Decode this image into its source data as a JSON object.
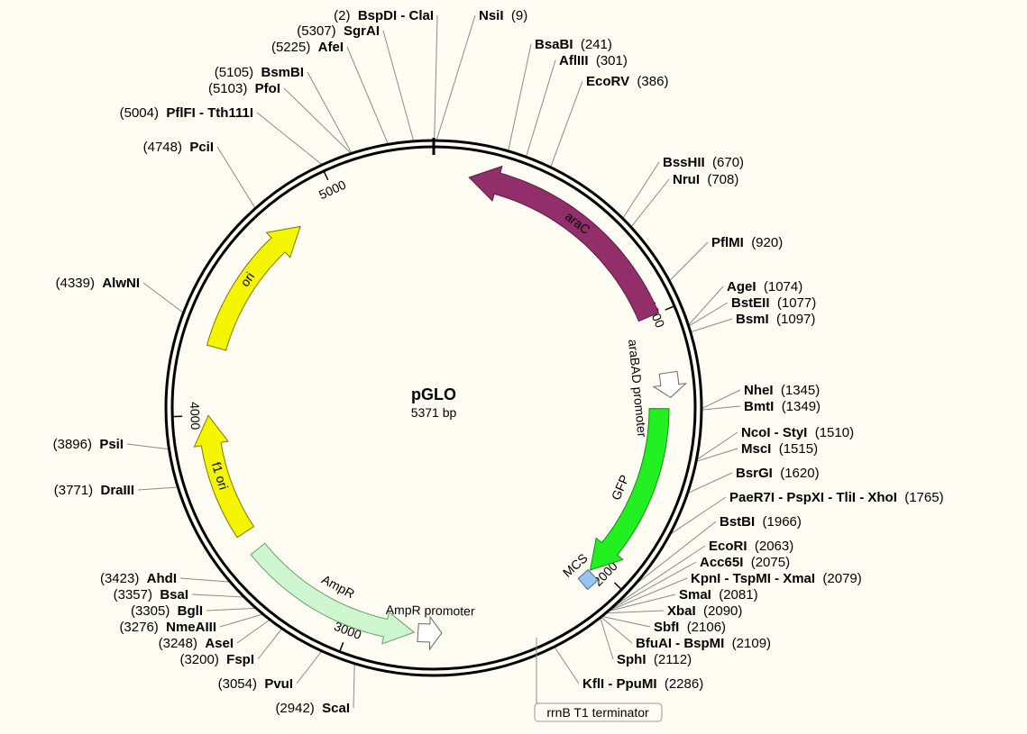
{
  "plasmid": {
    "name": "pGLO",
    "size_label": "5371 bp",
    "length_bp": 5371
  },
  "ticks": [
    "1000",
    "2000",
    "3000",
    "4000",
    "5000"
  ],
  "features": [
    {
      "name": "araC",
      "start": 1000,
      "end": 130,
      "direction": "reverse",
      "color": "#922f6a",
      "stroke": "#5a1e42",
      "label_inside": true,
      "text_color": "#ffffff"
    },
    {
      "name": "araBAD promoter",
      "start": 1215,
      "end": 1305,
      "direction": "forward",
      "color": "#ffffff",
      "stroke": "#666666",
      "label_inside": false,
      "text_color": "#000000"
    },
    {
      "name": "GFP",
      "start": 1345,
      "end": 2030,
      "direction": "forward",
      "color": "#23f020",
      "stroke": "#1a8a18",
      "label_inside": false,
      "text_color": "#000000"
    },
    {
      "name": "MCS",
      "start": 2035,
      "end": 2085,
      "direction": "none",
      "color": "#99c4f0",
      "stroke": "#4a6f9a",
      "label_inside": false,
      "text_color": "#000000"
    },
    {
      "name": "AmpR promoter",
      "start": 2655,
      "end": 2745,
      "direction": "reverse",
      "color": "#ffffff",
      "stroke": "#666666",
      "label_inside": false,
      "text_color": "#000000"
    },
    {
      "name": "AmpR",
      "start": 2760,
      "end": 3450,
      "direction": "reverse",
      "color": "#cff7cf",
      "stroke": "#6aa06a",
      "label_inside": false,
      "text_color": "#000000"
    },
    {
      "name": "f1 ori",
      "start": 3530,
      "end": 4000,
      "direction": "forward",
      "color": "#f5f500",
      "stroke": "#7a7a00",
      "label_inside": true,
      "text_color": "#000000"
    },
    {
      "name": "ori",
      "start": 4260,
      "end": 4830,
      "direction": "forward",
      "color": "#f5f500",
      "stroke": "#7a7a00",
      "label_inside": true,
      "text_color": "#000000"
    }
  ],
  "rrnB_terminator": {
    "name": "rrnB T1 terminator"
  },
  "sites": [
    {
      "name": "NsiI",
      "pos": "(9)",
      "bp": 9
    },
    {
      "name": "BsaBI",
      "pos": "(241)",
      "bp": 241
    },
    {
      "name": "AflIII",
      "pos": "(301)",
      "bp": 301
    },
    {
      "name": "EcoRV",
      "pos": "(386)",
      "bp": 386
    },
    {
      "name": "BssHII",
      "pos": "(670)",
      "bp": 670
    },
    {
      "name": "NruI",
      "pos": "(708)",
      "bp": 708
    },
    {
      "name": "PflMI",
      "pos": "(920)",
      "bp": 920
    },
    {
      "name": "AgeI",
      "pos": "(1074)",
      "bp": 1074
    },
    {
      "name": "BstEII",
      "pos": "(1077)",
      "bp": 1077
    },
    {
      "name": "BsmI",
      "pos": "(1097)",
      "bp": 1097
    },
    {
      "name": "NheI",
      "pos": "(1345)",
      "bp": 1345
    },
    {
      "name": "BmtI",
      "pos": "(1349)",
      "bp": 1349
    },
    {
      "name": "NcoI - StyI",
      "pos": "(1510)",
      "bp": 1510
    },
    {
      "name": "MscI",
      "pos": "(1515)",
      "bp": 1515
    },
    {
      "name": "BsrGI",
      "pos": "(1620)",
      "bp": 1620
    },
    {
      "name": "PaeR7I - PspXI - TliI - XhoI",
      "pos": "(1765)",
      "bp": 1765
    },
    {
      "name": "BstBI",
      "pos": "(1966)",
      "bp": 1966
    },
    {
      "name": "EcoRI",
      "pos": "(2063)",
      "bp": 2063
    },
    {
      "name": "Acc65I",
      "pos": "(2075)",
      "bp": 2075
    },
    {
      "name": "KpnI - TspMI - XmaI",
      "pos": "(2079)",
      "bp": 2079
    },
    {
      "name": "SmaI",
      "pos": "(2081)",
      "bp": 2081
    },
    {
      "name": "XbaI",
      "pos": "(2090)",
      "bp": 2090
    },
    {
      "name": "SbfI",
      "pos": "(2106)",
      "bp": 2106
    },
    {
      "name": "BfuAI - BspMI",
      "pos": "(2109)",
      "bp": 2109
    },
    {
      "name": "SphI",
      "pos": "(2112)",
      "bp": 2112
    },
    {
      "name": "KflI - PpuMI",
      "pos": "(2286)",
      "bp": 2286
    },
    {
      "name": "ScaI",
      "pos": "(2942)",
      "bp": 2942
    },
    {
      "name": "PvuI",
      "pos": "(3054)",
      "bp": 3054
    },
    {
      "name": "FspI",
      "pos": "(3200)",
      "bp": 3200
    },
    {
      "name": "AseI",
      "pos": "(3248)",
      "bp": 3248
    },
    {
      "name": "NmeAIII",
      "pos": "(3276)",
      "bp": 3276
    },
    {
      "name": "BglI",
      "pos": "(3305)",
      "bp": 3305
    },
    {
      "name": "BsaI",
      "pos": "(3357)",
      "bp": 3357
    },
    {
      "name": "AhdI",
      "pos": "(3423)",
      "bp": 3423
    },
    {
      "name": "DraIII",
      "pos": "(3771)",
      "bp": 3771
    },
    {
      "name": "PsiI",
      "pos": "(3896)",
      "bp": 3896
    },
    {
      "name": "AlwNI",
      "pos": "(4339)",
      "bp": 4339
    },
    {
      "name": "PciI",
      "pos": "(4748)",
      "bp": 4748
    },
    {
      "name": "PflFI - Tth111I",
      "pos": "(5004)",
      "bp": 5004
    },
    {
      "name": "PfoI",
      "pos": "(5103)",
      "bp": 5103
    },
    {
      "name": "BsmBI",
      "pos": "(5105)",
      "bp": 5105
    },
    {
      "name": "AfeI",
      "pos": "(5225)",
      "bp": 5225
    },
    {
      "name": "SgrAI",
      "pos": "(5307)",
      "bp": 5307
    },
    {
      "name": "BspDI - ClaI",
      "pos": "(2)",
      "bp": 2
    }
  ]
}
